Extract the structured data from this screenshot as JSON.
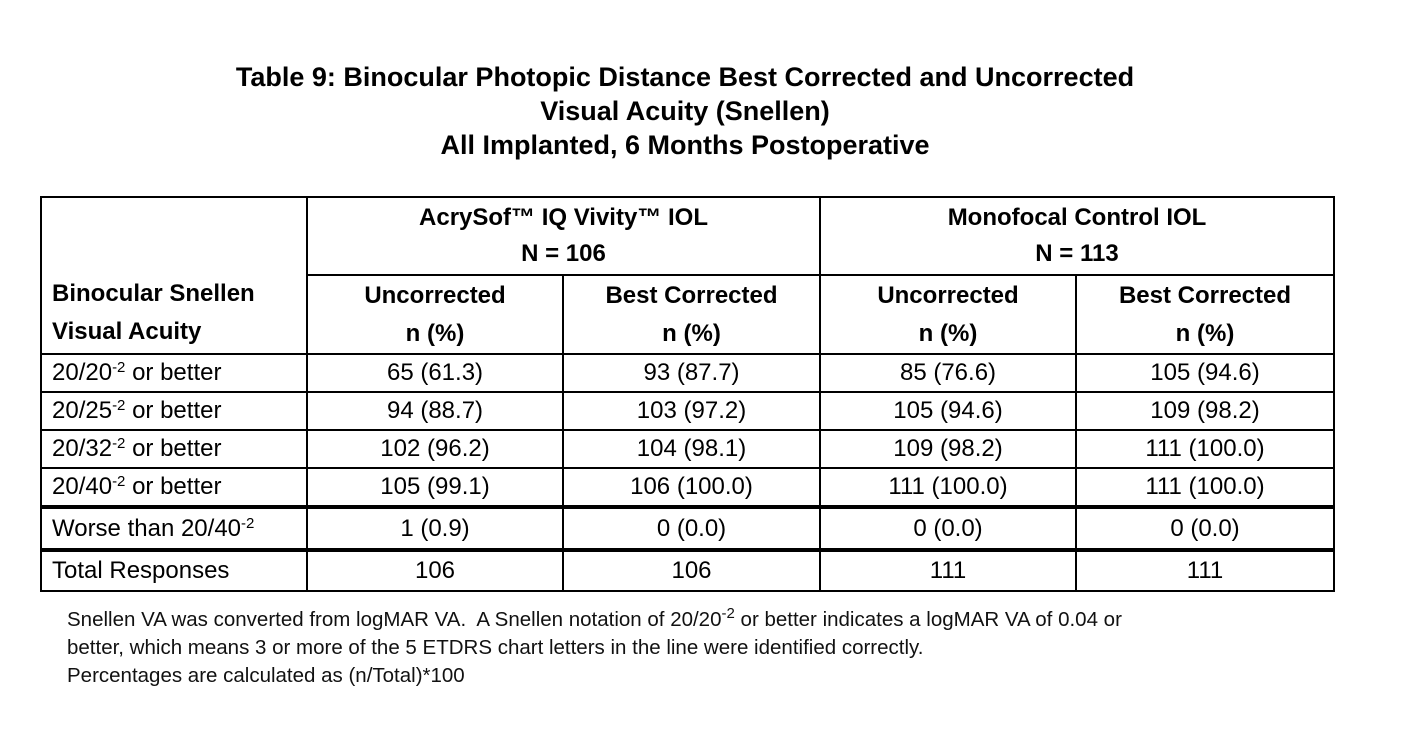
{
  "title": {
    "line1": "Table 9: Binocular Photopic Distance Best Corrected and Uncorrected",
    "line2": "Visual Acuity (Snellen)",
    "line3": "All Implanted, 6 Months Postoperative"
  },
  "table": {
    "stub_header": {
      "line1": "Binocular Snellen",
      "line2": "Visual Acuity"
    },
    "groups": [
      {
        "name": "AcrySof™  IQ Vivity™  IOL",
        "n": "N = 106"
      },
      {
        "name": "Monofocal Control IOL",
        "n": "N = 113"
      }
    ],
    "subheaders": [
      {
        "label": "Uncorrected",
        "unit": "n (%)"
      },
      {
        "label": "Best Corrected",
        "unit": "n (%)"
      },
      {
        "label": "Uncorrected",
        "unit": "n (%)"
      },
      {
        "label": "Best Corrected",
        "unit": "n (%)"
      }
    ],
    "rows": [
      {
        "pre": "20/20",
        "sup": "-2",
        "post": " or better",
        "values": [
          "65 (61.3)",
          "93 (87.7)",
          "85 (76.6)",
          "105 (94.6)"
        ]
      },
      {
        "pre": "20/25",
        "sup": "-2",
        "post": " or better",
        "values": [
          "94 (88.7)",
          "103 (97.2)",
          "105 (94.6)",
          "109 (98.2)"
        ]
      },
      {
        "pre": "20/32",
        "sup": "-2",
        "post": " or better",
        "values": [
          "102 (96.2)",
          "104 (98.1)",
          "109 (98.2)",
          "111 (100.0)"
        ]
      },
      {
        "pre": "20/40",
        "sup": "-2",
        "post": " or better",
        "values": [
          "105 (99.1)",
          "106 (100.0)",
          "111 (100.0)",
          "111 (100.0)"
        ]
      }
    ],
    "worse_row": {
      "pre": "Worse than 20/40",
      "sup": "-2",
      "values": [
        "1 (0.9)",
        "0 (0.0)",
        "0 (0.0)",
        "0 (0.0)"
      ]
    },
    "total_row": {
      "label": "Total Responses",
      "values": [
        "106",
        "106",
        "111",
        "111"
      ]
    }
  },
  "notes": {
    "line1_pre": "Snellen VA was converted from logMAR VA.  A Snellen notation of 20/20",
    "line1_sup": "-2",
    "line1_post": " or better indicates a logMAR VA of 0.04 or",
    "line2": "better, which means 3 or more of the 5 ETDRS chart letters in the line were identified correctly.",
    "line3": "Percentages are calculated as (n/Total)*100"
  }
}
